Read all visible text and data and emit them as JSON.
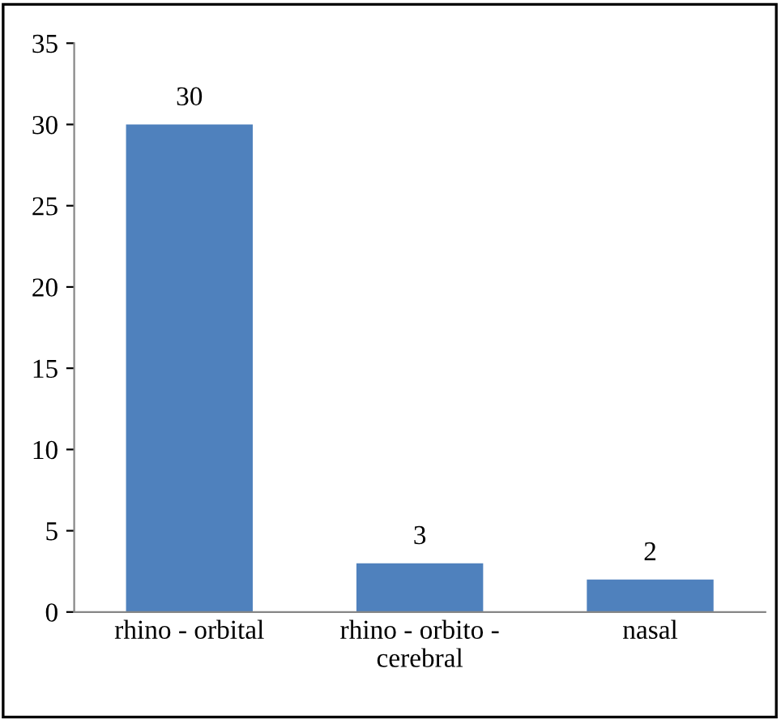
{
  "chart_data": {
    "type": "bar",
    "categories": [
      "rhino - orbital",
      "rhino - orbito -\ncerebral",
      "nasal"
    ],
    "values": [
      30,
      3,
      2
    ],
    "color": "#4f81bd",
    "ylim": [
      0,
      35
    ],
    "yticks": [
      0,
      5,
      10,
      15,
      20,
      25,
      30,
      35
    ],
    "data_labels": true,
    "grid": false,
    "legend": false
  }
}
